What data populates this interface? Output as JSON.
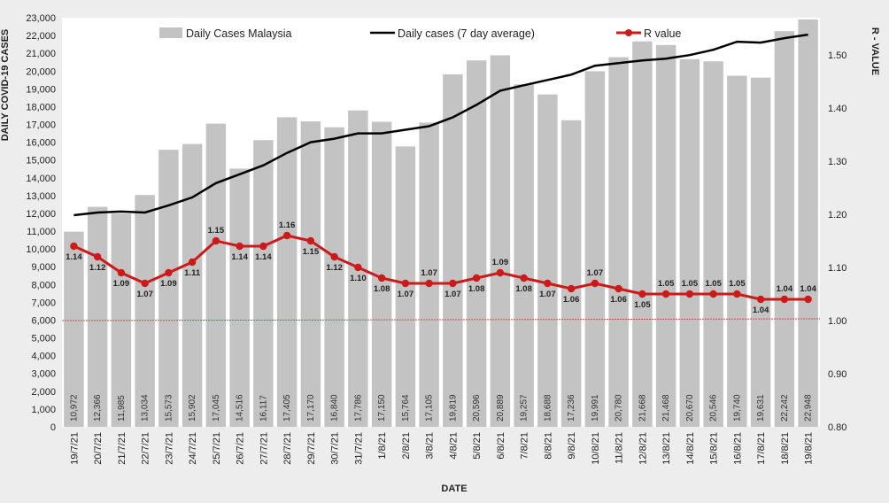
{
  "chart_data": {
    "type": "bar+line",
    "xlabel": "DATE",
    "ylabel_left": "DAILY COVID-19 CASES",
    "ylabel_right": "R - VALUE",
    "ylim_left": [
      0,
      23000
    ],
    "ylim_right": [
      0.8,
      1.57
    ],
    "yticks_left": [
      "0",
      "1,000",
      "2,000",
      "3,000",
      "4,000",
      "5,000",
      "6,000",
      "7,000",
      "8,000",
      "9,000",
      "10,000",
      "11,000",
      "12,000",
      "13,000",
      "14,000",
      "15,000",
      "16,000",
      "17,000",
      "18,000",
      "19,000",
      "20,000",
      "21,000",
      "22,000",
      "23,000"
    ],
    "yticks_right": [
      "0.80",
      "0.90",
      "1.00",
      "1.10",
      "1.20",
      "1.30",
      "1.40",
      "1.50"
    ],
    "categories": [
      "19/7/21",
      "20/7/21",
      "21/7/21",
      "22/7/21",
      "23/7/21",
      "24/7/21",
      "25/7/21",
      "26/7/21",
      "27/7/21",
      "28/7/21",
      "29/7/21",
      "30/7/21",
      "31/7/21",
      "1/8/21",
      "2/8/21",
      "3/8/21",
      "4/8/21",
      "5/8/21",
      "6/8/21",
      "7/8/21",
      "8/8/21",
      "9/8/21",
      "10/8/21",
      "11/8/21",
      "12/8/21",
      "13/8/21",
      "14/8/21",
      "15/8/21",
      "16/8/21",
      "17/8/21",
      "18/8/21",
      "19/8/21"
    ],
    "series": [
      {
        "name": "Daily Cases Malaysia",
        "type": "bar",
        "axis": "left",
        "color": "#c3c3c3",
        "values": [
          10972,
          12366,
          11985,
          13034,
          15573,
          15902,
          17045,
          14516,
          16117,
          17405,
          17170,
          16840,
          17786,
          17150,
          15764,
          17105,
          19819,
          20596,
          20889,
          19257,
          18688,
          17236,
          19991,
          20780,
          21668,
          21468,
          20670,
          20546,
          19740,
          19631,
          22242,
          22948
        ],
        "labels": [
          "10,972",
          "12,366",
          "11,985",
          "13,034",
          "15,573",
          "15,902",
          "17,045",
          "14,516",
          "16,117",
          "17,405",
          "17,170",
          "16,840",
          "17,786",
          "17,150",
          "15,764",
          "17,105",
          "19,819",
          "20,596",
          "20,889",
          "19,257",
          "18,688",
          "17,236",
          "19,991",
          "20,780",
          "21,668",
          "21,468",
          "20,670",
          "20,546",
          "19,740",
          "19,631",
          "22,242",
          "22,948"
        ]
      },
      {
        "name": "Daily cases (7 day average)",
        "type": "line",
        "axis": "left",
        "color": "#000000",
        "values": [
          11900,
          12050,
          12100,
          12050,
          12450,
          12900,
          13700,
          14200,
          14700,
          15400,
          16000,
          16200,
          16500,
          16500,
          16700,
          16900,
          17400,
          18100,
          18900,
          19200,
          19500,
          19800,
          20300,
          20450,
          20600,
          20700,
          20900,
          21200,
          21650,
          21600,
          21850,
          22050
        ]
      },
      {
        "name": "R value",
        "type": "line",
        "axis": "right",
        "color": "#cc1a1a",
        "values": [
          1.14,
          1.12,
          1.09,
          1.07,
          1.09,
          1.11,
          1.15,
          1.14,
          1.14,
          1.16,
          1.15,
          1.12,
          1.1,
          1.08,
          1.07,
          1.07,
          1.07,
          1.08,
          1.09,
          1.08,
          1.07,
          1.06,
          1.07,
          1.06,
          1.05,
          1.05,
          1.05,
          1.05,
          1.05,
          1.04,
          1.04,
          1.04
        ],
        "labels": [
          "1.14",
          "1.12",
          "1.09",
          "1.07",
          "1.09",
          "1.11",
          "1.15",
          "1.14",
          "1.14",
          "1.16",
          "1.15",
          "1.12",
          "1.10",
          "1.08",
          "1.07",
          "1.07",
          "1.07",
          "1.08",
          "1.09",
          "1.08",
          "1.07",
          "1.06",
          "1.07",
          "1.06",
          "1.05",
          "1.05",
          "1.05",
          "1.05",
          "1.05",
          "1.04",
          "1.04",
          "1.04"
        ]
      }
    ],
    "reference_line": {
      "axis": "right",
      "value": 1.0,
      "color": "#c0504d"
    },
    "legend_position": "top",
    "grid": false
  }
}
